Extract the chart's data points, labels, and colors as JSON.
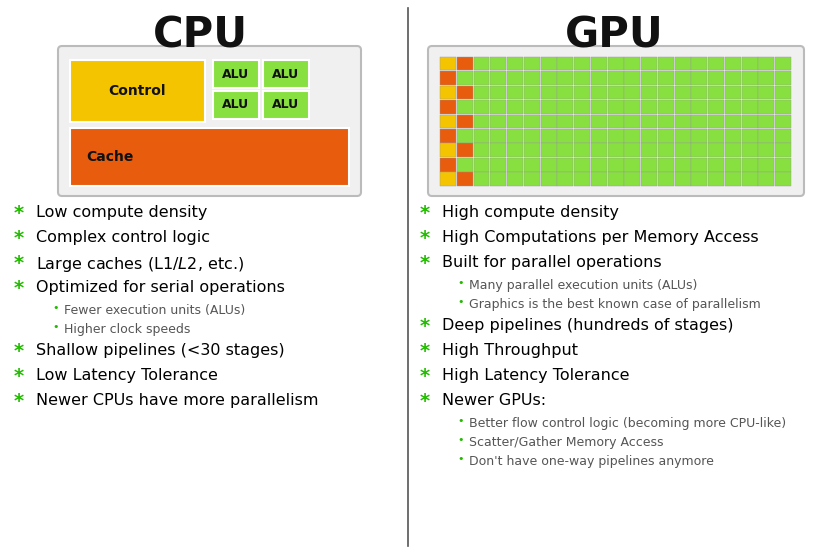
{
  "title_cpu": "CPU",
  "title_gpu": "GPU",
  "title_fontsize": 30,
  "title_color": "#111111",
  "bg_color": "#ffffff",
  "divider_color": "#555555",
  "cpu_diagram": {
    "control_color": "#f5c400",
    "alu_color": "#88e040",
    "cache_color": "#e85c0d",
    "outer_bg": "#f0f0f0",
    "outer_edge": "#bbbbbb",
    "control_label": "Control",
    "alu_label": "ALU",
    "cache_label": "Cache"
  },
  "gpu_diagram": {
    "green_color": "#88e040",
    "yellow_color": "#f5c400",
    "orange_color": "#e85c0d",
    "outer_bg": "#f0f0f0",
    "outer_edge": "#bbbbbb",
    "rows": 9,
    "cols": 21
  },
  "cpu_bullets": [
    {
      "text": "Low compute density",
      "level": 0
    },
    {
      "text": "Complex control logic",
      "level": 0
    },
    {
      "text": "Large caches (L1$/L2$, etc.)",
      "level": 0
    },
    {
      "text": "Optimized for serial operations",
      "level": 0
    },
    {
      "text": "Fewer execution units (ALUs)",
      "level": 1
    },
    {
      "text": "Higher clock speeds",
      "level": 1
    },
    {
      "text": "Shallow pipelines (<30 stages)",
      "level": 0
    },
    {
      "text": "Low Latency Tolerance",
      "level": 0
    },
    {
      "text": "Newer CPUs have more parallelism",
      "level": 0
    }
  ],
  "gpu_bullets": [
    {
      "text": "High compute density",
      "level": 0
    },
    {
      "text": "High Computations per Memory Access",
      "level": 0
    },
    {
      "text": "Built for parallel operations",
      "level": 0
    },
    {
      "text": "Many parallel execution units (ALUs)",
      "level": 1
    },
    {
      "text": "Graphics is the best known case of parallelism",
      "level": 1
    },
    {
      "text": "Deep pipelines (hundreds of stages)",
      "level": 0
    },
    {
      "text": "High Throughput",
      "level": 0
    },
    {
      "text": "High Latency Tolerance",
      "level": 0
    },
    {
      "text": "Newer GPUs:",
      "level": 0
    },
    {
      "text": "Better flow control logic (becoming more CPU-like)",
      "level": 1
    },
    {
      "text": "Scatter/Gather Memory Access",
      "level": 1
    },
    {
      "text": "Don't have one-way pipelines anymore",
      "level": 1
    }
  ],
  "bullet_color_main": "#22bb00",
  "bullet_color_sub": "#22bb00",
  "text_color_main": "#000000",
  "text_color_sub": "#555555",
  "main_fontsize": 11.5,
  "sub_fontsize": 9.0,
  "bullet_star_fontsize": 14
}
